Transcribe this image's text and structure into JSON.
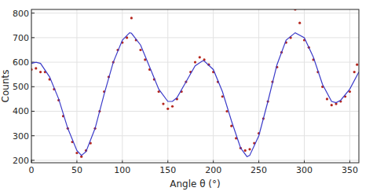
{
  "chart_data": {
    "type": "scatter",
    "x_label": "Angle θ (°)",
    "y_label": "Counts",
    "xlim": [
      0,
      360
    ],
    "ylim": [
      190,
      815
    ],
    "xticks": [
      0,
      50,
      100,
      150,
      200,
      250,
      300,
      350
    ],
    "yticks": [
      200,
      300,
      400,
      500,
      600,
      700,
      800
    ],
    "grid": true,
    "series": [
      {
        "type": "scatter",
        "color": "#b5261e",
        "marker": "circle",
        "x": [
          0,
          5,
          10,
          15,
          20,
          25,
          30,
          35,
          40,
          45,
          50,
          55,
          60,
          65,
          70,
          75,
          80,
          85,
          90,
          95,
          100,
          105,
          110,
          115,
          120,
          125,
          130,
          135,
          140,
          145,
          150,
          155,
          160,
          165,
          170,
          175,
          180,
          185,
          190,
          195,
          200,
          205,
          210,
          215,
          220,
          225,
          230,
          235,
          240,
          245,
          250,
          255,
          260,
          265,
          270,
          275,
          280,
          285,
          290,
          295,
          300,
          305,
          310,
          315,
          320,
          325,
          330,
          335,
          340,
          345,
          350,
          355,
          358
        ],
        "values": [
          570,
          575,
          560,
          560,
          530,
          490,
          445,
          380,
          330,
          275,
          230,
          215,
          240,
          270,
          330,
          400,
          480,
          540,
          600,
          650,
          680,
          700,
          780,
          690,
          650,
          610,
          570,
          530,
          480,
          430,
          410,
          420,
          450,
          480,
          520,
          560,
          600,
          620,
          610,
          590,
          560,
          520,
          460,
          400,
          340,
          290,
          250,
          240,
          245,
          270,
          310,
          370,
          440,
          520,
          580,
          640,
          680,
          700,
          815,
          760,
          690,
          660,
          610,
          560,
          500,
          450,
          425,
          430,
          440,
          460,
          480,
          560,
          590
        ]
      },
      {
        "type": "line",
        "color": "#3b3bc9",
        "line_style": "solid",
        "x": [
          0,
          5,
          10,
          20,
          30,
          40,
          50,
          55,
          60,
          70,
          80,
          90,
          100,
          108,
          110,
          120,
          130,
          140,
          150,
          155,
          160,
          170,
          180,
          188,
          190,
          200,
          210,
          220,
          230,
          237,
          240,
          250,
          260,
          270,
          280,
          290,
          300,
          310,
          320,
          330,
          335,
          340,
          350,
          360
        ],
        "values": [
          595,
          600,
          595,
          540,
          450,
          330,
          240,
          220,
          235,
          330,
          470,
          600,
          690,
          720,
          718,
          670,
          580,
          490,
          440,
          440,
          455,
          520,
          585,
          605,
          605,
          570,
          480,
          360,
          250,
          215,
          220,
          300,
          440,
          590,
          690,
          720,
          700,
          620,
          510,
          440,
          435,
          445,
          490,
          560
        ]
      }
    ]
  }
}
